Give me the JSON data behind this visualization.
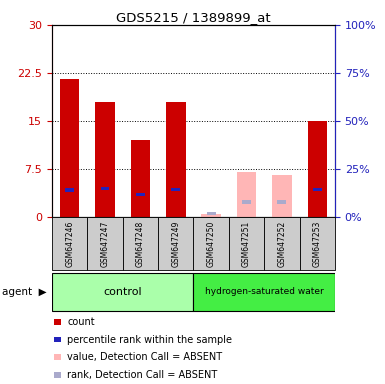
{
  "title": "GDS5215 / 1389899_at",
  "samples": [
    "GSM647246",
    "GSM647247",
    "GSM647248",
    "GSM647249",
    "GSM647250",
    "GSM647251",
    "GSM647252",
    "GSM647253"
  ],
  "red_values": [
    21.5,
    18.0,
    12.0,
    18.0,
    null,
    null,
    null,
    15.0
  ],
  "blue_values": [
    14.0,
    15.0,
    11.5,
    14.5,
    null,
    null,
    null,
    14.5
  ],
  "pink_values": [
    null,
    null,
    null,
    null,
    0.5,
    7.0,
    6.5,
    null
  ],
  "lavender_values": [
    null,
    null,
    null,
    null,
    1.8,
    7.8,
    7.8,
    null
  ],
  "ylim_left": [
    0,
    30
  ],
  "ylim_right": [
    0,
    100
  ],
  "yticks_left": [
    0,
    7.5,
    15,
    22.5,
    30
  ],
  "yticks_right": [
    0,
    25,
    50,
    75,
    100
  ],
  "red_color": "#CC0000",
  "blue_color": "#2222BB",
  "pink_color": "#FFB6B6",
  "lavender_color": "#AAAACC",
  "bg_color": "#CCCCCC",
  "plot_bg": "#FFFFFF",
  "green_light": "#AAFFAA",
  "green_dark": "#44EE44",
  "legend_items": [
    {
      "color": "#CC0000",
      "label": "count"
    },
    {
      "color": "#2222BB",
      "label": "percentile rank within the sample"
    },
    {
      "color": "#FFB6B6",
      "label": "value, Detection Call = ABSENT"
    },
    {
      "color": "#AAAACC",
      "label": "rank, Detection Call = ABSENT"
    }
  ]
}
